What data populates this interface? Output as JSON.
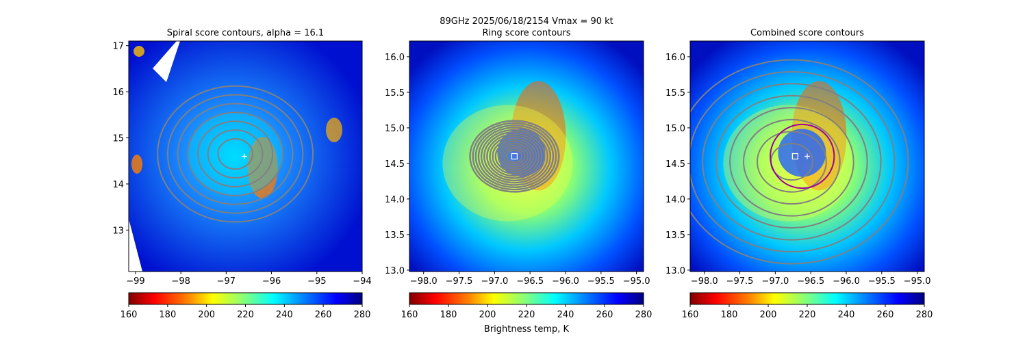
{
  "figure": {
    "suptitle_line1": "89GHz  2025/06/18/2154    Vmax = 90 kt",
    "colorbar_label": "Brightness temp, K"
  },
  "colors": {
    "contour": "#808080",
    "ring": "#9b009b",
    "marker": "#ffffff",
    "colormap": [
      "#800000",
      "#ff0000",
      "#ff8000",
      "#ffff00",
      "#80ff80",
      "#00ffff",
      "#0080ff",
      "#0000ff",
      "#000080"
    ]
  },
  "chart_data": [
    {
      "type": "heatmap",
      "title": "Spiral score contours, alpha = 16.1",
      "xlim": [
        -99.15,
        -94.0
      ],
      "ylim": [
        12.1,
        17.1
      ],
      "xticks": [
        -99,
        -98,
        -97,
        -96,
        -95,
        -94
      ],
      "xtick_labels": [
        "−99",
        "−98",
        "−97",
        "−96",
        "−95",
        "−94"
      ],
      "yticks": [
        13,
        14,
        15,
        16,
        17
      ],
      "ytick_labels": [
        "13",
        "14",
        "15",
        "16",
        "17"
      ],
      "center": {
        "x": -96.8,
        "y": 14.65
      },
      "plus_marker": {
        "x": -96.6,
        "y": 14.6
      },
      "contour_levels": 7,
      "colorbar": {
        "vmin": 160,
        "vmax": 280,
        "ticks": [
          160,
          180,
          200,
          220,
          240,
          260,
          280
        ],
        "cmap": "jet_r"
      }
    },
    {
      "type": "heatmap",
      "title": "Ring score contours",
      "xlim": [
        -98.2,
        -94.9
      ],
      "ylim": [
        12.98,
        16.22
      ],
      "xticks": [
        -98.0,
        -97.5,
        -97.0,
        -96.5,
        -96.0,
        -95.5,
        -95.0
      ],
      "xtick_labels": [
        "−98.0",
        "−97.5",
        "−97.0",
        "−96.5",
        "−96.0",
        "−95.5",
        "−95.0"
      ],
      "yticks": [
        13.0,
        13.5,
        14.0,
        14.5,
        15.0,
        15.5,
        16.0
      ],
      "ytick_labels": [
        "13.0",
        "13.5",
        "14.0",
        "14.5",
        "15.0",
        "15.5",
        "16.0"
      ],
      "center": {
        "x": -96.72,
        "y": 14.6
      },
      "square_marker": {
        "x": -96.72,
        "y": 14.6
      },
      "contour_levels": 14,
      "colorbar": {
        "vmin": 160,
        "vmax": 280,
        "ticks": [
          160,
          180,
          200,
          220,
          240,
          260,
          280
        ],
        "cmap": "jet_r"
      }
    },
    {
      "type": "heatmap",
      "title": "Combined score contours",
      "xlim": [
        -98.2,
        -94.9
      ],
      "ylim": [
        12.98,
        16.22
      ],
      "xticks": [
        -98.0,
        -97.5,
        -97.0,
        -96.5,
        -96.0,
        -95.5,
        -95.0
      ],
      "xtick_labels": [
        "−98.0",
        "−97.5",
        "−97.0",
        "−96.5",
        "−96.0",
        "−95.5",
        "−95.0"
      ],
      "yticks": [
        13.0,
        13.5,
        14.0,
        14.5,
        15.0,
        15.5,
        16.0
      ],
      "ytick_labels": [
        "13.0",
        "13.5",
        "14.0",
        "14.5",
        "15.0",
        "15.5",
        "16.0"
      ],
      "center": {
        "x": -96.72,
        "y": 14.6
      },
      "square_marker": {
        "x": -96.72,
        "y": 14.6
      },
      "plus_marker": {
        "x": -96.55,
        "y": 14.6
      },
      "ring": {
        "x": -96.62,
        "y": 14.6,
        "radius": 0.45
      },
      "contour_levels": 8,
      "colorbar": {
        "vmin": 160,
        "vmax": 280,
        "ticks": [
          160,
          180,
          200,
          220,
          240,
          260,
          280
        ],
        "cmap": "jet_r"
      }
    }
  ]
}
